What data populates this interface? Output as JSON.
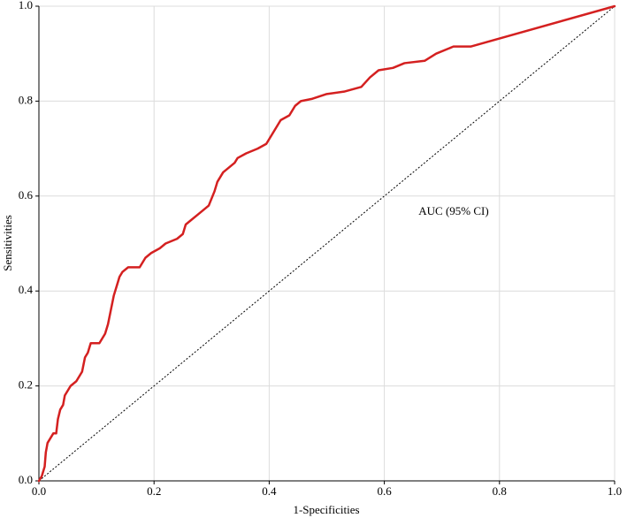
{
  "chart_data": {
    "type": "line",
    "annotation": "AUC (95% CI)",
    "xlabel": "1-Specificities",
    "ylabel": "Sensitivities",
    "xlim": [
      0,
      1
    ],
    "ylim": [
      0,
      1
    ],
    "xticks": [
      {
        "value": 0,
        "label": "0.0"
      },
      0.2,
      0.4,
      0.6,
      0.8,
      {
        "value": 1,
        "label": "1.0"
      }
    ],
    "yticks": [
      {
        "value": 0,
        "label": "0.0"
      },
      0.2,
      0.4,
      0.6,
      0.8,
      {
        "value": 1,
        "label": "1.0"
      }
    ],
    "grid": true,
    "series": [
      {
        "color": "#d42020",
        "x": [
          0,
          0.005,
          0.01,
          0.012,
          0.015,
          0.02,
          0.025,
          0.03,
          0.033,
          0.037,
          0.042,
          0.045,
          0.05,
          0.055,
          0.065,
          0.075,
          0.08,
          0.085,
          0.09,
          0.105,
          0.11,
          0.115,
          0.12,
          0.125,
          0.13,
          0.135,
          0.14,
          0.145,
          0.155,
          0.175,
          0.185,
          0.195,
          0.21,
          0.22,
          0.24,
          0.25,
          0.255,
          0.265,
          0.275,
          0.285,
          0.295,
          0.305,
          0.31,
          0.32,
          0.33,
          0.34,
          0.345,
          0.36,
          0.38,
          0.395,
          0.405,
          0.42,
          0.435,
          0.445,
          0.455,
          0.475,
          0.5,
          0.53,
          0.56,
          0.575,
          0.59,
          0.615,
          0.635,
          0.67,
          0.69,
          0.72,
          0.75,
          1
        ],
        "values": [
          0,
          0.01,
          0.03,
          0.06,
          0.08,
          0.09,
          0.1,
          0.1,
          0.13,
          0.15,
          0.16,
          0.18,
          0.19,
          0.2,
          0.21,
          0.23,
          0.26,
          0.27,
          0.29,
          0.29,
          0.3,
          0.31,
          0.33,
          0.36,
          0.39,
          0.41,
          0.43,
          0.44,
          0.45,
          0.45,
          0.47,
          0.48,
          0.49,
          0.5,
          0.51,
          0.52,
          0.54,
          0.55,
          0.56,
          0.57,
          0.58,
          0.61,
          0.63,
          0.65,
          0.66,
          0.67,
          0.68,
          0.69,
          0.7,
          0.71,
          0.73,
          0.76,
          0.77,
          0.79,
          0.8,
          0.805,
          0.815,
          0.82,
          0.83,
          0.85,
          0.865,
          0.87,
          0.88,
          0.885,
          0.9,
          0.915,
          0.915,
          1
        ]
      }
    ]
  }
}
